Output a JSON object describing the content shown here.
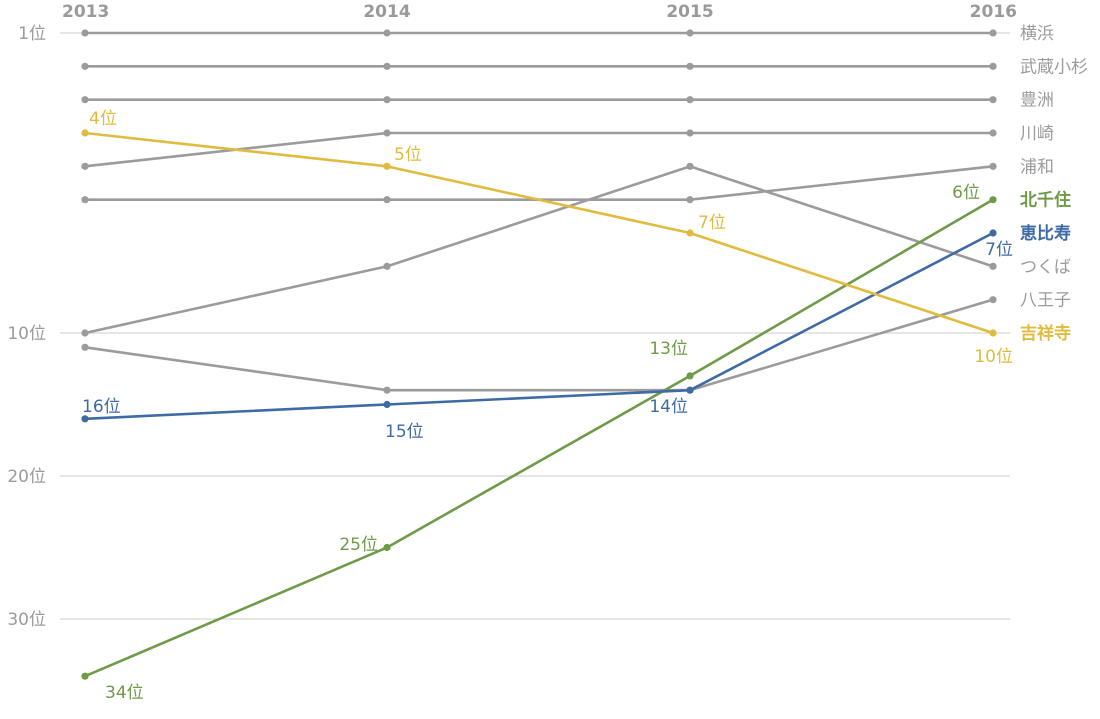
{
  "chart_data": {
    "type": "line",
    "title": "",
    "x": [
      "2013",
      "2014",
      "2015",
      "2016"
    ],
    "y_ticks": [
      {
        "value": 1,
        "label": "1位"
      },
      {
        "value": 10,
        "label": "10位"
      },
      {
        "value": 20,
        "label": "20位"
      },
      {
        "value": 30,
        "label": "30位"
      }
    ],
    "y_axis": {
      "inverted": true,
      "note": "rank, 1 at top"
    },
    "grid": true,
    "legend": "right",
    "series": [
      {
        "name": "横浜",
        "color": "#9b9b9b",
        "highlight": false,
        "values": [
          1,
          1,
          1,
          1
        ]
      },
      {
        "name": "武蔵小杉",
        "color": "#9b9b9b",
        "highlight": false,
        "values": [
          2,
          2,
          2,
          2
        ]
      },
      {
        "name": "豊洲",
        "color": "#9b9b9b",
        "highlight": false,
        "values": [
          3,
          3,
          3,
          3
        ]
      },
      {
        "name": "川崎",
        "color": "#9b9b9b",
        "highlight": false,
        "values": [
          5,
          4,
          4,
          4
        ]
      },
      {
        "name": "浦和",
        "color": "#9b9b9b",
        "highlight": false,
        "values": [
          6,
          6,
          6,
          5
        ]
      },
      {
        "name": "北千住",
        "color": "#6f9a48",
        "highlight": true,
        "values": [
          34,
          25,
          13,
          6
        ],
        "labels": [
          "34位",
          "25位",
          "13位",
          "6位"
        ]
      },
      {
        "name": "恵比寿",
        "color": "#3e6aa5",
        "highlight": true,
        "values": [
          16,
          15,
          14,
          7
        ],
        "labels": [
          "16位",
          "15位",
          "14位",
          "7位"
        ]
      },
      {
        "name": "つくば",
        "color": "#9b9b9b",
        "highlight": false,
        "values": [
          10,
          8,
          5,
          8
        ]
      },
      {
        "name": "八王子",
        "color": "#9b9b9b",
        "highlight": false,
        "values": [
          11,
          14,
          14,
          9
        ]
      },
      {
        "name": "吉祥寺",
        "color": "#e0bb3e",
        "highlight": true,
        "values": [
          4,
          5,
          7,
          10
        ],
        "labels": [
          "4位",
          "5位",
          "7位",
          "10位"
        ]
      }
    ]
  }
}
